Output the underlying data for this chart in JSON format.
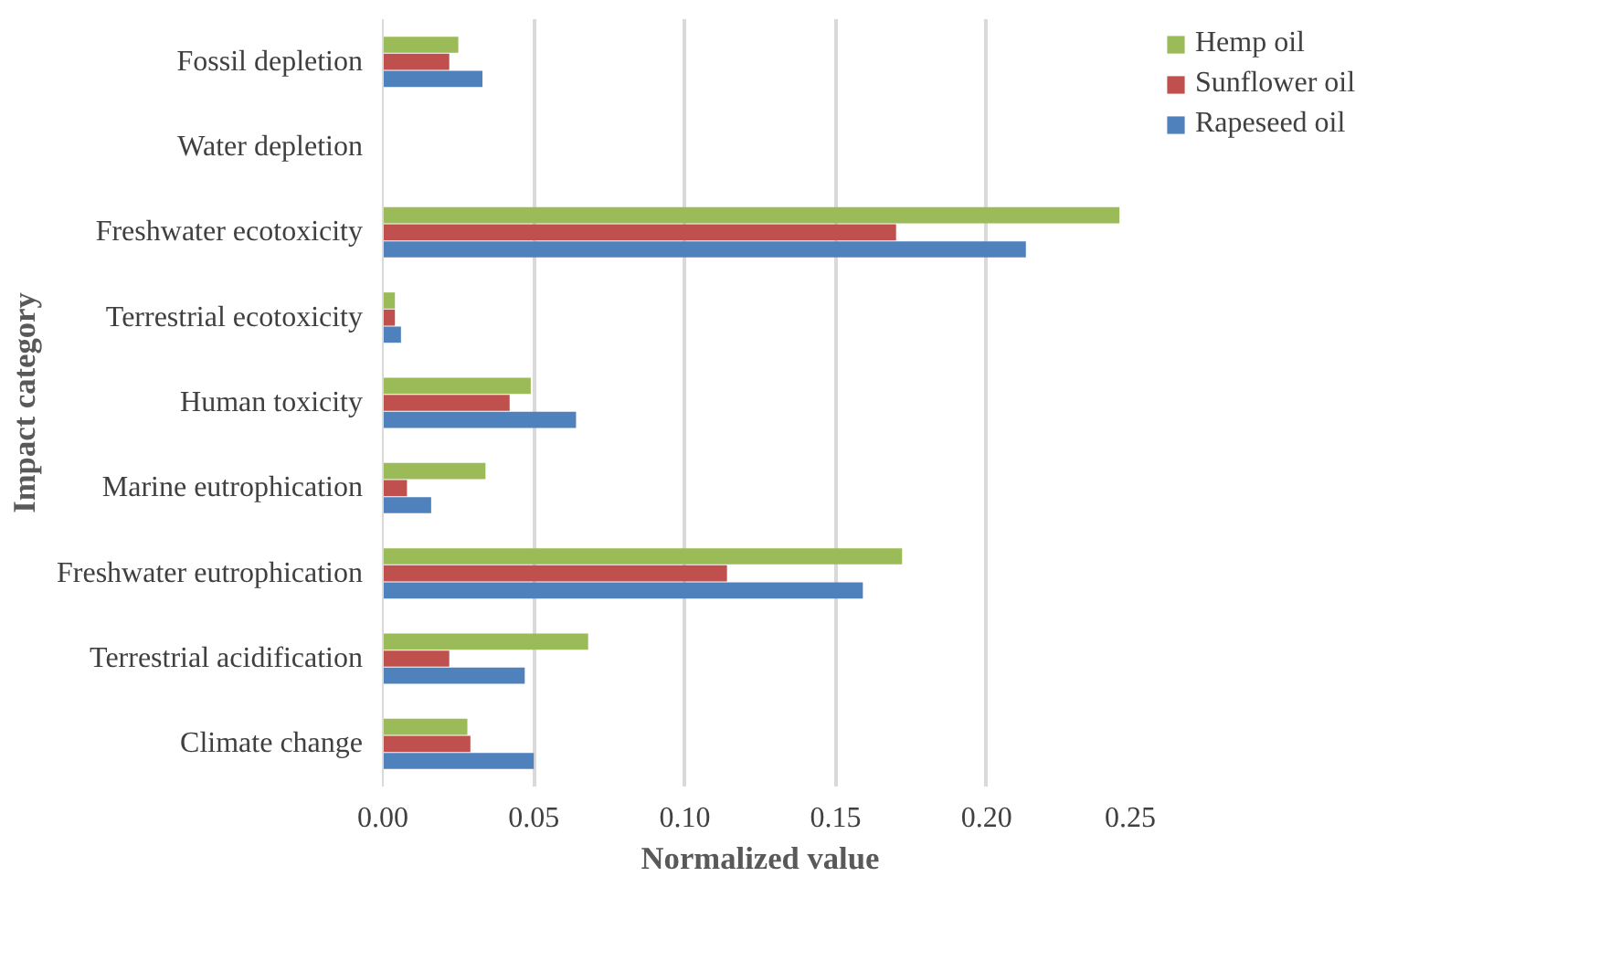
{
  "chart_data": {
    "type": "bar",
    "orientation": "horizontal",
    "xlabel": "Normalized value",
    "ylabel": "Impact category",
    "categories": [
      "Fossil depletion",
      "Water depletion",
      "Freshwater ecotoxicity",
      "Terrestrial ecotoxicity",
      "Human toxicity",
      "Marine eutrophication",
      "Freshwater eutrophication",
      "Terrestrial acidification",
      "Climate change"
    ],
    "series": [
      {
        "name": "Hemp oil",
        "color": "#9bbb59",
        "values": [
          0.025,
          0,
          0.244,
          0.004,
          0.049,
          0.034,
          0.172,
          0.068,
          0.028
        ]
      },
      {
        "name": "Sunflower oil",
        "color": "#c0504d",
        "values": [
          0.022,
          0,
          0.17,
          0.004,
          0.042,
          0.008,
          0.114,
          0.022,
          0.029
        ]
      },
      {
        "name": "Rapeseed oil",
        "color": "#4f81bd",
        "values": [
          0.033,
          0,
          0.213,
          0.006,
          0.064,
          0.016,
          0.159,
          0.047,
          0.05
        ]
      }
    ],
    "xlim": [
      0,
      0.25
    ],
    "xticks": [
      {
        "value": 0,
        "label": "0.00"
      },
      {
        "value": 0.05,
        "label": "0.05"
      },
      {
        "value": 0.1,
        "label": "0.10"
      },
      {
        "value": 0.15,
        "label": "0.15"
      },
      {
        "value": 0.2,
        "label": "0.20"
      },
      {
        "value": 0.25,
        "label": "0.25"
      }
    ],
    "grid": "x",
    "legend": "top right"
  }
}
